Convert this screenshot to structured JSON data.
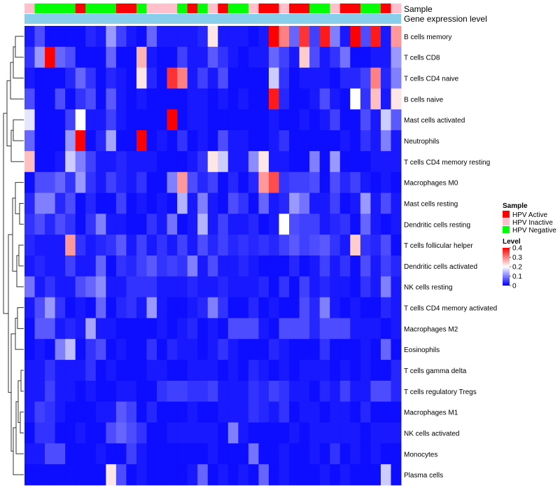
{
  "chart_data": {
    "type": "heatmap",
    "title": "",
    "annotation_labels": {
      "sample": "Sample",
      "gene": "Gene expression level"
    },
    "rows": [
      "B cells memory",
      "T cells CD8",
      "T cells CD4 naive",
      "B cells naive",
      "Mast cells activated",
      "Neutrophils",
      "T cells CD4 memory resting",
      "Macrophages M0",
      "Mast cells resting",
      "Dendritic cells resting",
      "T cells follicular helper",
      "Dendritic cells activated",
      "NK cells resting",
      "T cells CD4 memory activated",
      "Macrophages M2",
      "Eosinophils",
      "T cells gamma delta",
      "T cells regulatory  Tregs",
      "Macrophages M1",
      "NK cells activated",
      "Monocytes",
      "Plasma cells"
    ],
    "sample_groups": [
      "HPV Inactive",
      "HPV Negative",
      "HPV Negative",
      "HPV Negative",
      "HPV Negative",
      "HPV Active",
      "HPV Negative",
      "HPV Negative",
      "HPV Negative",
      "HPV Active",
      "HPV Active",
      "HPV Negative",
      "HPV Inactive",
      "HPV Inactive",
      "HPV Inactive",
      "HPV Negative",
      "HPV Active",
      "HPV Negative",
      "HPV Inactive",
      "HPV Active",
      "HPV Negative",
      "HPV Negative",
      "HPV Inactive",
      "HPV Active",
      "HPV Active",
      "HPV Inactive",
      "HPV Active",
      "HPV Active",
      "HPV Negative",
      "HPV Negative",
      "HPV Inactive",
      "HPV Active",
      "HPV Active",
      "HPV Negative",
      "HPV Negative",
      "HPV Active",
      "HPV Inactive"
    ],
    "values": [
      [
        0.02,
        0.06,
        0.01,
        0.01,
        0.01,
        0.01,
        0.03,
        0.02,
        0.12,
        0.05,
        0.02,
        0.01,
        0.08,
        0.02,
        0.02,
        0.02,
        0.02,
        0.03,
        0.22,
        0.02,
        0.02,
        0.02,
        0.01,
        0.02,
        0.42,
        0.3,
        0.08,
        0.36,
        0.05,
        0.38,
        0.1,
        0.02,
        0.42,
        0.06,
        0.38,
        0.02,
        0.28
      ],
      [
        0.04,
        0.12,
        0.4,
        0.08,
        0.06,
        0.01,
        0.01,
        0.01,
        0.08,
        0.01,
        0.01,
        0.26,
        0.02,
        0.01,
        0.01,
        0.05,
        0.02,
        0.02,
        0.07,
        0.04,
        0.02,
        0.01,
        0.02,
        0.02,
        0.08,
        0.05,
        0.02,
        0.24,
        0.06,
        0.02,
        0.04,
        0.09,
        0.01,
        0.01,
        0.02,
        0.02,
        0.12
      ],
      [
        0.02,
        0.01,
        0.01,
        0.01,
        0.03,
        0.08,
        0.04,
        0.01,
        0.03,
        0.02,
        0.01,
        0.22,
        0.03,
        0.01,
        0.36,
        0.3,
        0.02,
        0.05,
        0.02,
        0.06,
        0.01,
        0.01,
        0.01,
        0.01,
        0.16,
        0.04,
        0.01,
        0.02,
        0.02,
        0.02,
        0.01,
        0.03,
        0.03,
        0.05,
        0.3,
        0.03,
        0.1
      ],
      [
        0.06,
        0.01,
        0.01,
        0.06,
        0.01,
        0.04,
        0.06,
        0.01,
        0.07,
        0.02,
        0.01,
        0.02,
        0.01,
        0.01,
        0.01,
        0.01,
        0.02,
        0.02,
        0.01,
        0.02,
        0.01,
        0.02,
        0.01,
        0.01,
        0.38,
        0.03,
        0.01,
        0.01,
        0.02,
        0.06,
        0.02,
        0.01,
        0.2,
        0.04,
        0.25,
        0.02,
        0.22
      ],
      [
        0.18,
        0.01,
        0.01,
        0.01,
        0.05,
        0.2,
        0.02,
        0.02,
        0.05,
        0.02,
        0.01,
        0.01,
        0.01,
        0.01,
        0.4,
        0.01,
        0.02,
        0.02,
        0.01,
        0.01,
        0.01,
        0.01,
        0.01,
        0.01,
        0.02,
        0.01,
        0.01,
        0.02,
        0.01,
        0.02,
        0.05,
        0.01,
        0.01,
        0.06,
        0.02,
        0.16,
        0.07
      ],
      [
        0.08,
        0.01,
        0.01,
        0.01,
        0.12,
        0.42,
        0.01,
        0.03,
        0.13,
        0.01,
        0.01,
        0.4,
        0.01,
        0.02,
        0.01,
        0.04,
        0.01,
        0.02,
        0.01,
        0.06,
        0.02,
        0.02,
        0.01,
        0.01,
        0.02,
        0.04,
        0.01,
        0.01,
        0.01,
        0.01,
        0.01,
        0.02,
        0.01,
        0.04,
        0.02,
        0.1,
        0.02
      ],
      [
        0.25,
        0.01,
        0.01,
        0.02,
        0.16,
        0.1,
        0.05,
        0.02,
        0.02,
        0.03,
        0.02,
        0.02,
        0.02,
        0.01,
        0.01,
        0.01,
        0.02,
        0.04,
        0.22,
        0.16,
        0.02,
        0.02,
        0.11,
        0.22,
        0.02,
        0.02,
        0.01,
        0.01,
        0.1,
        0.01,
        0.12,
        0.01,
        0.01,
        0.01,
        0.02,
        0.02,
        0.02
      ],
      [
        0.01,
        0.06,
        0.06,
        0.08,
        0.04,
        0.12,
        0.04,
        0.02,
        0.05,
        0.03,
        0.02,
        0.04,
        0.01,
        0.01,
        0.1,
        0.28,
        0.06,
        0.03,
        0.05,
        0.01,
        0.03,
        0.01,
        0.03,
        0.28,
        0.34,
        0.04,
        0.05,
        0.05,
        0.06,
        0.01,
        0.06,
        0.03,
        0.05,
        0.02,
        0.01,
        0.02,
        0.01
      ],
      [
        0.03,
        0.1,
        0.1,
        0.03,
        0.06,
        0.01,
        0.03,
        0.01,
        0.01,
        0.05,
        0.01,
        0.02,
        0.01,
        0.02,
        0.01,
        0.14,
        0.02,
        0.1,
        0.02,
        0.01,
        0.06,
        0.04,
        0.01,
        0.08,
        0.02,
        0.03,
        0.12,
        0.09,
        0.02,
        0.02,
        0.05,
        0.01,
        0.02,
        0.12,
        0.02,
        0.06,
        0.02
      ],
      [
        0.04,
        0.06,
        0.03,
        0.06,
        0.04,
        0.01,
        0.04,
        0.1,
        0.02,
        0.02,
        0.01,
        0.01,
        0.04,
        0.02,
        0.09,
        0.01,
        0.02,
        0.14,
        0.02,
        0.05,
        0.02,
        0.02,
        0.03,
        0.01,
        0.02,
        0.2,
        0.06,
        0.05,
        0.05,
        0.02,
        0.03,
        0.04,
        0.01,
        0.08,
        0.02,
        0.01,
        0.02
      ],
      [
        0.03,
        0.02,
        0.02,
        0.02,
        0.28,
        0.04,
        0.02,
        0.03,
        0.04,
        0.07,
        0.02,
        0.05,
        0.02,
        0.04,
        0.02,
        0.05,
        0.02,
        0.06,
        0.03,
        0.05,
        0.03,
        0.04,
        0.03,
        0.04,
        0.03,
        0.05,
        0.07,
        0.05,
        0.06,
        0.07,
        0.04,
        0.02,
        0.24,
        0.04,
        0.03,
        0.06,
        0.01
      ],
      [
        0.02,
        0.03,
        0.02,
        0.02,
        0.05,
        0.02,
        0.02,
        0.08,
        0.01,
        0.04,
        0.03,
        0.05,
        0.07,
        0.04,
        0.05,
        0.04,
        0.1,
        0.02,
        0.06,
        0.02,
        0.02,
        0.03,
        0.02,
        0.01,
        0.01,
        0.01,
        0.03,
        0.01,
        0.02,
        0.05,
        0.02,
        0.04,
        0.01,
        0.06,
        0.02,
        0.05,
        0.03
      ],
      [
        0.09,
        0.02,
        0.04,
        0.02,
        0.02,
        0.06,
        0.08,
        0.11,
        0.02,
        0.02,
        0.04,
        0.04,
        0.04,
        0.02,
        0.02,
        0.02,
        0.03,
        0.02,
        0.02,
        0.03,
        0.02,
        0.02,
        0.02,
        0.03,
        0.01,
        0.04,
        0.01,
        0.05,
        0.02,
        0.03,
        0.02,
        0.02,
        0.01,
        0.04,
        0.02,
        0.1,
        0.02
      ],
      [
        0.02,
        0.06,
        0.12,
        0.04,
        0.01,
        0.02,
        0.01,
        0.08,
        0.01,
        0.03,
        0.04,
        0.02,
        0.12,
        0.02,
        0.01,
        0.01,
        0.02,
        0.03,
        0.1,
        0.04,
        0.01,
        0.01,
        0.03,
        0.01,
        0.02,
        0.01,
        0.01,
        0.06,
        0.03,
        0.1,
        0.02,
        0.01,
        0.02,
        0.01,
        0.01,
        0.03,
        0.02
      ],
      [
        0.01,
        0.07,
        0.07,
        0.02,
        0.03,
        0.02,
        0.13,
        0.02,
        0.02,
        0.01,
        0.01,
        0.01,
        0.01,
        0.02,
        0.01,
        0.02,
        0.03,
        0.01,
        0.02,
        0.01,
        0.06,
        0.06,
        0.06,
        0.02,
        0.01,
        0.06,
        0.06,
        0.06,
        0.03,
        0.06,
        0.06,
        0.06,
        0.02,
        0.02,
        0.02,
        0.01,
        0.02
      ],
      [
        0.01,
        0.02,
        0.01,
        0.1,
        0.15,
        0.01,
        0.04,
        0.06,
        0.01,
        0.02,
        0.01,
        0.01,
        0.04,
        0.01,
        0.03,
        0.02,
        0.02,
        0.01,
        0.02,
        0.04,
        0.02,
        0.01,
        0.01,
        0.01,
        0.03,
        0.02,
        0.01,
        0.01,
        0.01,
        0.04,
        0.01,
        0.01,
        0.01,
        0.02,
        0.01,
        0.08,
        0.01
      ],
      [
        0.02,
        0.02,
        0.04,
        0.02,
        0.02,
        0.02,
        0.04,
        0.01,
        0.02,
        0.01,
        0.01,
        0.01,
        0.02,
        0.02,
        0.01,
        0.01,
        0.02,
        0.02,
        0.02,
        0.01,
        0.02,
        0.01,
        0.03,
        0.02,
        0.01,
        0.02,
        0.01,
        0.02,
        0.02,
        0.02,
        0.01,
        0.02,
        0.01,
        0.02,
        0.01,
        0.01,
        0.03
      ],
      [
        0.02,
        0.02,
        0.05,
        0.02,
        0.02,
        0.01,
        0.02,
        0.01,
        0.01,
        0.02,
        0.02,
        0.01,
        0.01,
        0.04,
        0.05,
        0.05,
        0.04,
        0.04,
        0.05,
        0.02,
        0.02,
        0.02,
        0.04,
        0.03,
        0.05,
        0.04,
        0.02,
        0.02,
        0.01,
        0.03,
        0.02,
        0.05,
        0.02,
        0.02,
        0.06,
        0.06,
        0.03
      ],
      [
        0.02,
        0.05,
        0.04,
        0.02,
        0.01,
        0.01,
        0.01,
        0.02,
        0.02,
        0.07,
        0.05,
        0.01,
        0.03,
        0.01,
        0.01,
        0.01,
        0.02,
        0.01,
        0.01,
        0.02,
        0.02,
        0.02,
        0.04,
        0.03,
        0.02,
        0.04,
        0.01,
        0.02,
        0.02,
        0.01,
        0.02,
        0.02,
        0.01,
        0.03,
        0.01,
        0.01,
        0.01
      ],
      [
        0.01,
        0.04,
        0.04,
        0.01,
        0.01,
        0.02,
        0.01,
        0.01,
        0.06,
        0.08,
        0.06,
        0.04,
        0.01,
        0.01,
        0.02,
        0.02,
        0.02,
        0.02,
        0.02,
        0.01,
        0.1,
        0.02,
        0.01,
        0.01,
        0.01,
        0.01,
        0.02,
        0.01,
        0.02,
        0.02,
        0.02,
        0.02,
        0.02,
        0.01,
        0.02,
        0.02,
        0.02
      ],
      [
        0.02,
        0.02,
        0.06,
        0.06,
        0.01,
        0.01,
        0.01,
        0.02,
        0.01,
        0.01,
        0.05,
        0.02,
        0.01,
        0.01,
        0.01,
        0.01,
        0.01,
        0.01,
        0.02,
        0.01,
        0.01,
        0.01,
        0.09,
        0.01,
        0.01,
        0.02,
        0.01,
        0.01,
        0.02,
        0.01,
        0.04,
        0.01,
        0.02,
        0.01,
        0.02,
        0.01,
        0.01
      ],
      [
        0.01,
        0.01,
        0.01,
        0.01,
        0.01,
        0.01,
        0.01,
        0.01,
        0.22,
        0.06,
        0.01,
        0.02,
        0.01,
        0.01,
        0.01,
        0.01,
        0.02,
        0.08,
        0.01,
        0.02,
        0.01,
        0.02,
        0.01,
        0.08,
        0.01,
        0.02,
        0.01,
        0.01,
        0.01,
        0.02,
        0.01,
        0.02,
        0.01,
        0.01,
        0.01,
        0.16,
        0.01
      ]
    ],
    "color_scale": {
      "min": 0,
      "max": 0.4,
      "low": "#0000ff",
      "mid": "#ffffff",
      "high": "#ff0000"
    },
    "legend": {
      "sample_title": "Sample",
      "sample_items": [
        {
          "label": "HPV Active",
          "color": "#ff0000"
        },
        {
          "label": "HPV Inactive",
          "color": "#ffc0cb"
        },
        {
          "label": "HPV Negative",
          "color": "#00ff00"
        }
      ],
      "level_title": "Level",
      "level_ticks": [
        "0.4",
        "0.3",
        "0.2",
        "0.1",
        "0"
      ],
      "level_values": [
        0.4,
        0.3,
        0.2,
        0.1,
        0
      ]
    },
    "gene_bar_color": "#87ceeb",
    "dendrogram": "row-clustering"
  }
}
